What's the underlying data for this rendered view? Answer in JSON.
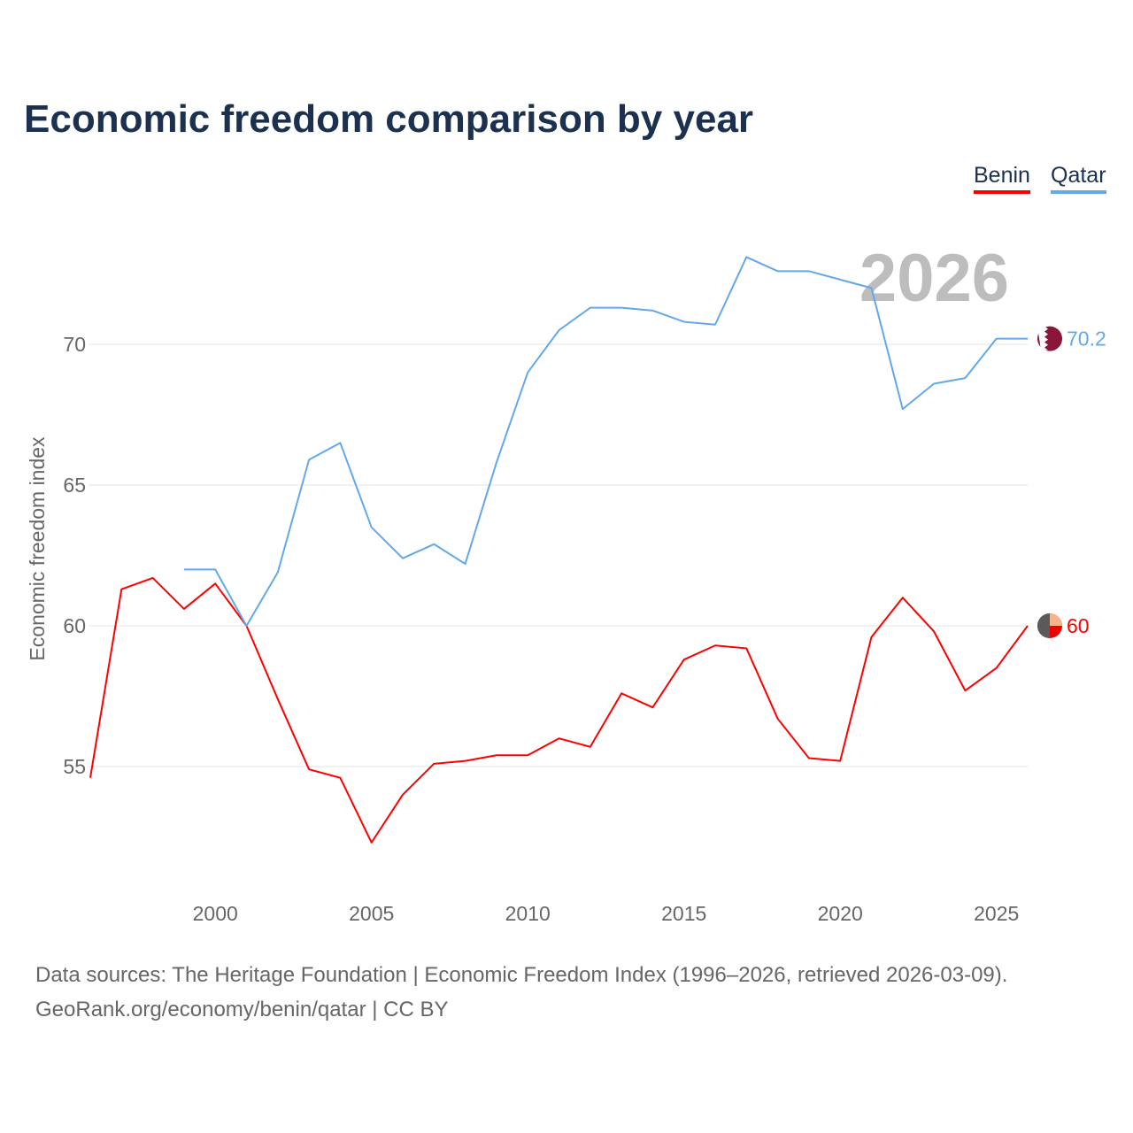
{
  "chart_data": {
    "type": "line",
    "title": "Economic freedom comparison by year",
    "xlabel": "",
    "ylabel": "Economic freedom index",
    "xlim": [
      1996,
      2026
    ],
    "ylim": [
      50.5,
      73.6
    ],
    "x_ticks": [
      2000,
      2005,
      2010,
      2015,
      2020,
      2025
    ],
    "y_ticks": [
      55,
      60,
      65,
      70
    ],
    "grid": "horizontal",
    "legend_placement": "top-right",
    "year_watermark": "2026",
    "series": [
      {
        "name": "Benin",
        "color": "#ff0000",
        "end_label": "60",
        "x": [
          1996,
          1997,
          1998,
          1999,
          2000,
          2001,
          2002,
          2003,
          2004,
          2005,
          2006,
          2007,
          2008,
          2009,
          2010,
          2011,
          2012,
          2013,
          2014,
          2015,
          2016,
          2017,
          2018,
          2019,
          2020,
          2021,
          2022,
          2023,
          2024,
          2025,
          2026
        ],
        "values": [
          54.6,
          61.3,
          61.7,
          60.6,
          61.5,
          60.0,
          57.4,
          54.9,
          54.6,
          52.3,
          54.0,
          55.1,
          55.2,
          55.4,
          55.4,
          56.0,
          55.7,
          57.6,
          57.1,
          58.8,
          59.3,
          59.2,
          56.7,
          55.3,
          55.2,
          59.6,
          61.0,
          59.8,
          57.7,
          58.5,
          60.0
        ]
      },
      {
        "name": "Qatar",
        "color": "#62a8ea",
        "end_label": "70.2",
        "x": [
          1999,
          2000,
          2001,
          2002,
          2003,
          2004,
          2005,
          2006,
          2007,
          2008,
          2009,
          2010,
          2011,
          2012,
          2013,
          2014,
          2015,
          2016,
          2017,
          2018,
          2019,
          2020,
          2021,
          2022,
          2023,
          2024,
          2025,
          2026
        ],
        "values": [
          62.0,
          62.0,
          60.0,
          61.9,
          65.9,
          66.5,
          63.5,
          62.4,
          62.9,
          62.2,
          65.8,
          69.0,
          70.5,
          71.3,
          71.3,
          71.2,
          70.8,
          70.7,
          73.1,
          72.6,
          72.6,
          72.3,
          72.0,
          67.7,
          68.6,
          68.8,
          70.2,
          70.2
        ]
      }
    ]
  },
  "legend": {
    "benin": "Benin",
    "qatar": "Qatar"
  },
  "footer": {
    "line1": "Data sources: The Heritage Foundation | Economic Freedom Index (1996–2026, retrieved 2026-03-09).",
    "line2": "GeoRank.org/economy/benin/qatar | CC BY"
  }
}
